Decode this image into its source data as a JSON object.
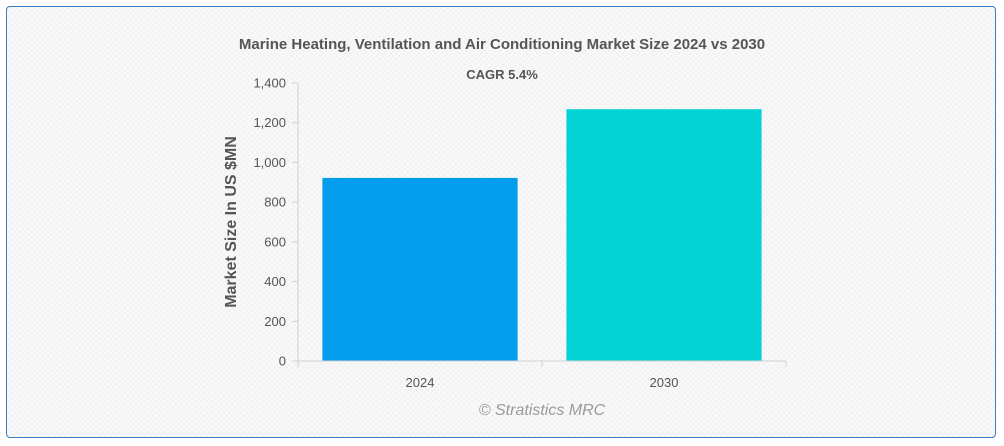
{
  "chart_data": {
    "type": "bar",
    "title": "Marine Heating, Ventilation and Air Conditioning Market Size 2024 vs 2030",
    "subtitle": "CAGR 5.4%",
    "xlabel": "",
    "ylabel": "Market Size In US $MN",
    "categories": [
      "2024",
      "2030"
    ],
    "values": [
      922,
      1268
    ],
    "colors": [
      "#049ded",
      "#03d3d4"
    ],
    "ylim": [
      0,
      1400
    ],
    "yticks": [
      0,
      200,
      400,
      600,
      800,
      1000,
      1200,
      1400
    ],
    "ytick_labels": [
      "0",
      "200",
      "400",
      "600",
      "800",
      "1,000",
      "1,200",
      "1,400"
    ],
    "grid": false,
    "legend": "none"
  },
  "watermark": "© Stratistics MRC"
}
